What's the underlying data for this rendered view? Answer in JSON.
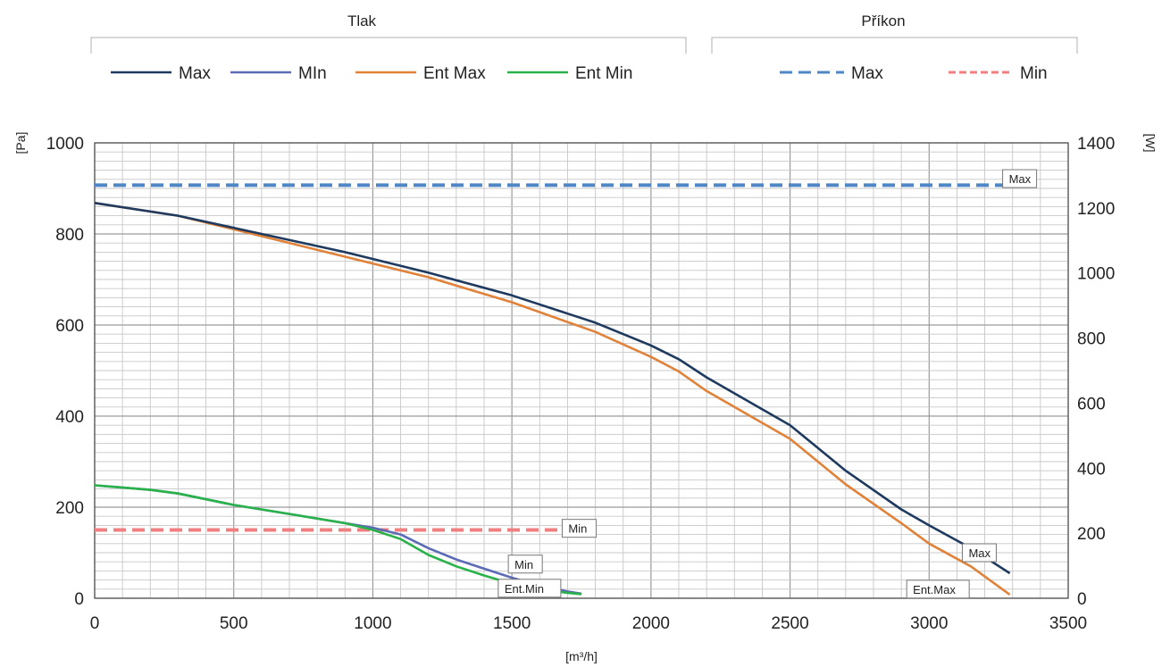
{
  "legend": {
    "groups": [
      {
        "title": "Tlak",
        "items": [
          {
            "label": "Max",
            "series": "Max"
          },
          {
            "label": "MIn",
            "series": "Min"
          },
          {
            "label": "Ent Max",
            "series": "Ent Max"
          },
          {
            "label": "Ent Min",
            "series": "Ent Min"
          }
        ]
      },
      {
        "title": "Příkon",
        "items": [
          {
            "label": "Max",
            "series": "Příkon Max"
          },
          {
            "label": "Min",
            "series": "Příkon Min"
          }
        ]
      }
    ]
  },
  "chart_data": {
    "type": "line",
    "xlabel": "[m³/h]",
    "ylabel": "[Pa]",
    "y2label": "[W]",
    "xlim": [
      0,
      3500
    ],
    "ylim": [
      0,
      1000
    ],
    "y2lim": [
      0,
      1400
    ],
    "xticks": [
      0,
      500,
      1000,
      1500,
      2000,
      2500,
      3000,
      3500
    ],
    "yticks": [
      0,
      200,
      400,
      600,
      800,
      1000
    ],
    "y2ticks": [
      0,
      200,
      400,
      600,
      800,
      1000,
      1200,
      1400
    ],
    "grid": true,
    "legend_position": "top",
    "series": [
      {
        "name": "Max",
        "axis": "left",
        "color": "#1f3a5f",
        "dash": "solid",
        "x": [
          0,
          300,
          600,
          900,
          1200,
          1500,
          1800,
          2000,
          2100,
          2200,
          2400,
          2500,
          2700,
          2900,
          3000,
          3150,
          3290
        ],
        "y": [
          868,
          840,
          800,
          760,
          715,
          665,
          605,
          555,
          525,
          485,
          415,
          380,
          280,
          195,
          160,
          110,
          55
        ],
        "label": "Max",
        "label_x": 3145,
        "label_y": 100
      },
      {
        "name": "Min",
        "axis": "left",
        "color": "#5b6bb5",
        "dash": "solid",
        "x": [
          0,
          200,
          300,
          500,
          700,
          900,
          1000,
          1100,
          1200,
          1300,
          1400,
          1500,
          1600,
          1700,
          1750
        ],
        "y": [
          248,
          238,
          230,
          205,
          185,
          165,
          155,
          140,
          110,
          85,
          65,
          45,
          28,
          15,
          10
        ],
        "label": "Min",
        "label_x": 1500,
        "label_y": 75
      },
      {
        "name": "Ent Max",
        "axis": "left",
        "color": "#e0823a",
        "dash": "solid",
        "x": [
          0,
          300,
          600,
          900,
          1200,
          1500,
          1800,
          2000,
          2100,
          2200,
          2400,
          2500,
          2700,
          2900,
          3000,
          3150,
          3290
        ],
        "y": [
          868,
          840,
          795,
          750,
          705,
          650,
          585,
          530,
          498,
          455,
          385,
          350,
          250,
          165,
          120,
          70,
          8
        ],
        "label": "Ent.Max",
        "label_x": 2945,
        "label_y": 20
      },
      {
        "name": "Ent Min",
        "axis": "left",
        "color": "#2ab24a",
        "dash": "solid",
        "x": [
          0,
          200,
          300,
          500,
          700,
          900,
          1000,
          1100,
          1200,
          1300,
          1400,
          1500,
          1600,
          1700,
          1750
        ],
        "y": [
          248,
          238,
          230,
          205,
          185,
          165,
          150,
          130,
          95,
          70,
          50,
          32,
          20,
          12,
          9
        ],
        "label": "Ent.Min",
        "label_x": 1740,
        "label_y": 22
      },
      {
        "name": "Příkon Max",
        "axis": "right",
        "color": "#4f86c6",
        "dash": "dash",
        "x": [
          0,
          3290
        ],
        "y": [
          1270,
          1270
        ],
        "label": "Max",
        "label_x": 3290,
        "label_y": 1290
      },
      {
        "name": "Příkon Min",
        "axis": "right",
        "color": "#f08080",
        "dash": "dash",
        "x": [
          0,
          1700
        ],
        "y": [
          210,
          210
        ],
        "label": "Min",
        "label_x": 1700,
        "label_y": 215
      }
    ]
  }
}
